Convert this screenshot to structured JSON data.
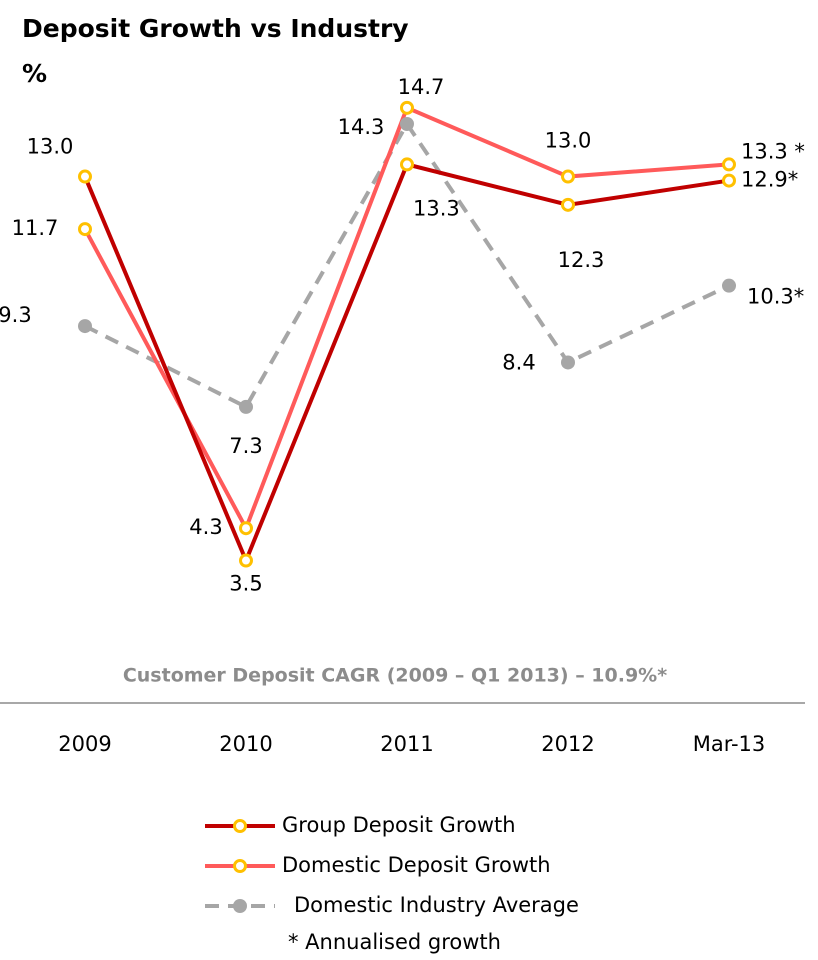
{
  "chart_data": {
    "type": "line",
    "title": "Deposit Growth vs Industry",
    "subtitle": "%",
    "annotation": "Customer Deposit CAGR (2009 – Q1 2013) – 10.9%*",
    "footnote": "* Annualised growth",
    "categories": [
      "2009",
      "2010",
      "2011",
      "2012",
      "Mar-13"
    ],
    "series": [
      {
        "name": "Group Deposit Growth",
        "color": "#c00000",
        "marker_color": "#ffc000",
        "dashed": false,
        "values": [
          13.0,
          3.5,
          13.3,
          12.3,
          12.9
        ],
        "value_labels": [
          "13.0",
          "3.5",
          "13.3",
          "12.3",
          "12.9*"
        ]
      },
      {
        "name": "Domestic Deposit Growth",
        "color": "#ff5a5a",
        "marker_color": "#ffc000",
        "dashed": false,
        "values": [
          11.7,
          4.3,
          14.7,
          13.0,
          13.3
        ],
        "value_labels": [
          "11.7",
          "4.3",
          "14.7",
          "13.0",
          "13.3 *"
        ]
      },
      {
        "name": "Domestic Industry Average",
        "color": "#a6a6a6",
        "marker_color": "#a6a6a6",
        "dashed": true,
        "values": [
          9.3,
          7.3,
          14.3,
          8.4,
          10.3
        ],
        "value_labels": [
          "9.3",
          "7.3",
          "14.3",
          "8.4",
          "10.3*"
        ]
      }
    ]
  }
}
